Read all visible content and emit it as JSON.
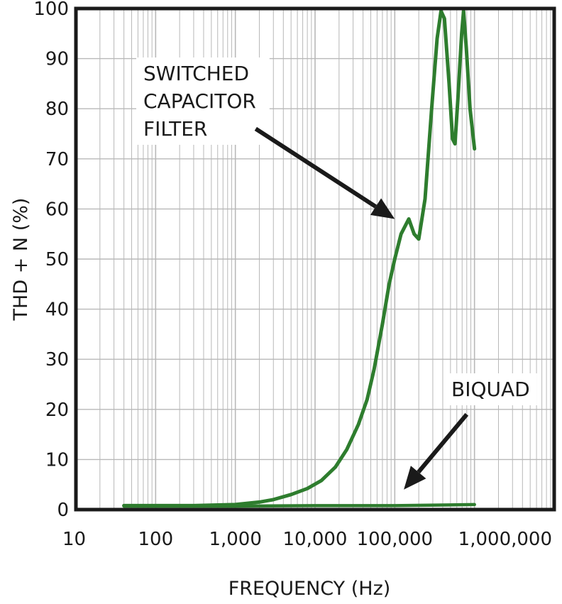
{
  "chart_data": {
    "type": "line",
    "title": "",
    "xlabel": "FREQUENCY (Hz)",
    "ylabel": "THD + N (%)",
    "xscale": "log",
    "xlim": [
      10,
      10000000
    ],
    "ylim": [
      0,
      100
    ],
    "grid": true,
    "x_tick_values": [
      10,
      100,
      1000,
      10000,
      100000,
      1000000
    ],
    "x_tick_labels": [
      "10",
      "100",
      "1,000",
      "10,000",
      "100,000",
      "1,000,000"
    ],
    "y_tick_values": [
      0,
      10,
      20,
      30,
      40,
      50,
      60,
      70,
      80,
      90,
      100
    ],
    "y_tick_labels": [
      "0",
      "10",
      "20",
      "30",
      "40",
      "50",
      "60",
      "70",
      "80",
      "90",
      "100"
    ],
    "colors": {
      "series": "#2e7d2e",
      "grid": "#b8b8b8",
      "frame": "#1a1a1a",
      "arrow": "#1a1a1a"
    },
    "series": [
      {
        "name": "SWITCHED CAPACITOR FILTER",
        "points": [
          [
            40,
            0.8
          ],
          [
            300,
            0.8
          ],
          [
            1000,
            1.0
          ],
          [
            2000,
            1.5
          ],
          [
            3000,
            2.0
          ],
          [
            5000,
            3.0
          ],
          [
            8000,
            4.2
          ],
          [
            12000,
            5.8
          ],
          [
            18000,
            8.5
          ],
          [
            25000,
            12
          ],
          [
            35000,
            17
          ],
          [
            45000,
            22
          ],
          [
            55000,
            28
          ],
          [
            70000,
            37
          ],
          [
            85000,
            45
          ],
          [
            100000,
            50
          ],
          [
            120000,
            55
          ],
          [
            150000,
            58
          ],
          [
            175000,
            55
          ],
          [
            200000,
            54
          ],
          [
            240000,
            62
          ],
          [
            290000,
            80
          ],
          [
            340000,
            94
          ],
          [
            380000,
            99.5
          ],
          [
            420000,
            98
          ],
          [
            480000,
            85
          ],
          [
            530000,
            74
          ],
          [
            570000,
            73
          ],
          [
            620000,
            82
          ],
          [
            690000,
            95
          ],
          [
            730000,
            99.5
          ],
          [
            790000,
            92
          ],
          [
            880000,
            80
          ],
          [
            1000000,
            72
          ]
        ]
      },
      {
        "name": "BIQUAD",
        "points": [
          [
            40,
            0.7
          ],
          [
            1000,
            0.7
          ],
          [
            10000,
            0.8
          ],
          [
            100000,
            0.8
          ],
          [
            1000000,
            1.0
          ]
        ]
      }
    ],
    "annotations": [
      {
        "text_lines": [
          "SWITCHED",
          "CAPACITOR",
          "FILTER"
        ],
        "arrow_from": [
          1800,
          76
        ],
        "arrow_to": [
          100000,
          58
        ]
      },
      {
        "text_lines": [
          "BIQUAD"
        ],
        "arrow_from": [
          800000,
          19
        ],
        "arrow_to": [
          130000,
          4
        ]
      }
    ]
  }
}
